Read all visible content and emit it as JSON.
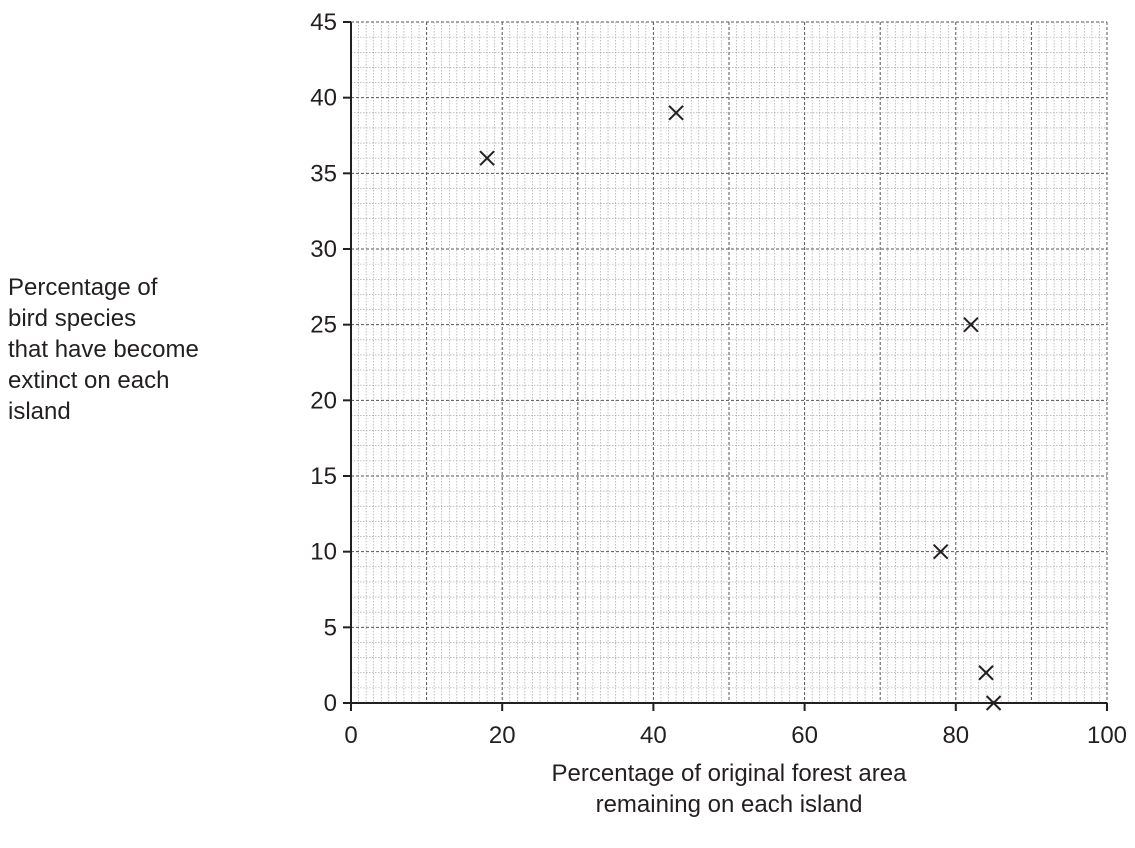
{
  "chart_data": {
    "type": "scatter",
    "title": "",
    "xlabel_lines": [
      "Percentage of original forest area",
      "remaining on each island"
    ],
    "ylabel_lines": [
      "Percentage of",
      "bird species",
      "that have become",
      "extinct on each",
      "island"
    ],
    "xlim": [
      0,
      100
    ],
    "ylim": [
      0,
      45
    ],
    "x_ticks": [
      0,
      20,
      40,
      60,
      80,
      100
    ],
    "y_ticks": [
      0,
      5,
      10,
      15,
      20,
      25,
      30,
      35,
      40,
      45
    ],
    "grid": true,
    "marker": "x",
    "colors": {
      "ink": "#231f20",
      "grid": "#9a9a9a"
    },
    "points": [
      {
        "x": 18,
        "y": 36
      },
      {
        "x": 43,
        "y": 39
      },
      {
        "x": 82,
        "y": 25
      },
      {
        "x": 78,
        "y": 10
      },
      {
        "x": 84,
        "y": 2
      },
      {
        "x": 85,
        "y": 0
      }
    ]
  }
}
